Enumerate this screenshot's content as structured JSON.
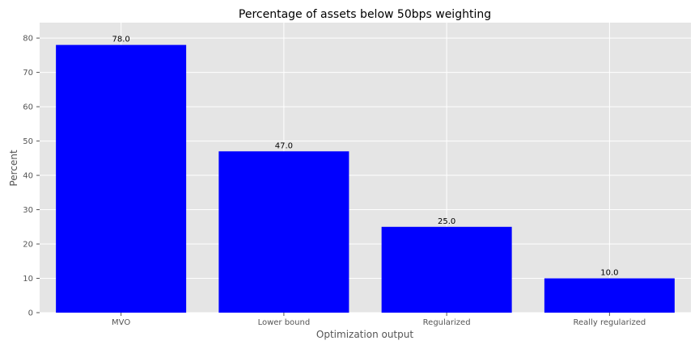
{
  "chart_data": {
    "type": "bar",
    "title": "Percentage of assets below 50bps weighting",
    "xlabel": "Optimization output",
    "ylabel": "Percent",
    "categories": [
      "MVO",
      "Lower bound",
      "Regularized",
      "Really regularized"
    ],
    "values": [
      78.0,
      47.0,
      25.0,
      10.0
    ],
    "data_labels": [
      "78.0",
      "47.0",
      "25.0",
      "10.0"
    ],
    "yticks": [
      0,
      10,
      20,
      30,
      40,
      50,
      60,
      70,
      80
    ],
    "ylim": [
      0,
      84.5
    ],
    "grid": true,
    "bar_color": "#0000ff",
    "background_color": "#e5e5e5",
    "grid_color": "#ffffff"
  }
}
